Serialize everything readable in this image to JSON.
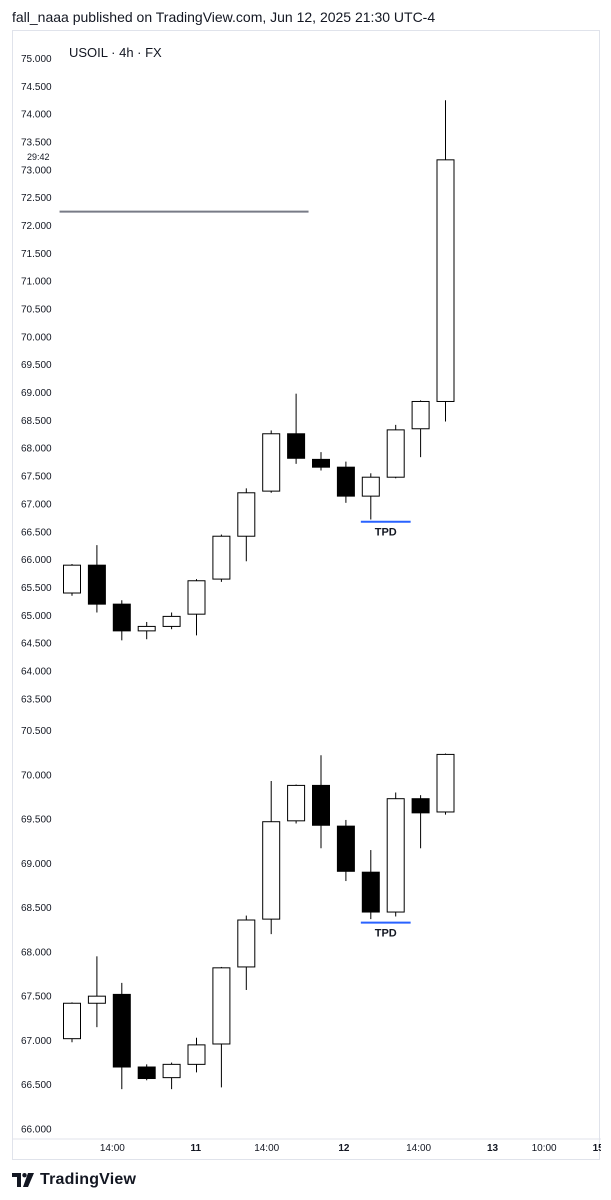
{
  "header": {
    "text": "fall_naaa published on TradingView.com, Jun 12, 2025 21:30 UTC-4"
  },
  "footer": {
    "brand": "TradingView",
    "logo_icon": "tradingview-logo-icon"
  },
  "chart_data": [
    {
      "type": "candlestick",
      "title": "USOIL · 4h · FX",
      "countdown": "29:42",
      "ylim": [
        63.5,
        75.0
      ],
      "y_ticks": [
        75.0,
        74.5,
        74.0,
        73.5,
        73.0,
        72.5,
        72.0,
        71.5,
        71.0,
        70.5,
        70.0,
        69.5,
        69.0,
        68.5,
        68.0,
        67.5,
        67.0,
        66.5,
        66.0,
        65.5,
        65.0,
        64.5,
        64.0,
        63.5
      ],
      "y_tick_labels": [
        "75.000",
        "74.500",
        "74.000",
        "73.500",
        "73.000",
        "72.500",
        "72.000",
        "71.500",
        "71.000",
        "70.500",
        "70.000",
        "69.500",
        "69.000",
        "68.500",
        "68.000",
        "67.500",
        "67.000",
        "66.500",
        "66.000",
        "65.500",
        "65.000",
        "64.500",
        "64.000",
        "63.500"
      ],
      "candles": [
        {
          "o": 65.4,
          "h": 65.92,
          "l": 65.35,
          "c": 65.9
        },
        {
          "o": 65.9,
          "h": 66.26,
          "l": 65.05,
          "c": 65.2
        },
        {
          "o": 65.2,
          "h": 65.27,
          "l": 64.55,
          "c": 64.72
        },
        {
          "o": 64.72,
          "h": 64.88,
          "l": 64.57,
          "c": 64.8
        },
        {
          "o": 64.8,
          "h": 65.05,
          "l": 64.75,
          "c": 64.98
        },
        {
          "o": 65.02,
          "h": 65.65,
          "l": 64.64,
          "c": 65.62
        },
        {
          "o": 65.65,
          "h": 66.45,
          "l": 65.6,
          "c": 66.42
        },
        {
          "o": 66.42,
          "h": 67.28,
          "l": 65.97,
          "c": 67.2
        },
        {
          "o": 67.23,
          "h": 68.32,
          "l": 67.2,
          "c": 68.26
        },
        {
          "o": 68.26,
          "h": 68.98,
          "l": 67.72,
          "c": 67.82
        },
        {
          "o": 67.8,
          "h": 67.93,
          "l": 67.6,
          "c": 67.66
        },
        {
          "o": 67.66,
          "h": 67.76,
          "l": 67.02,
          "c": 67.14
        },
        {
          "o": 67.14,
          "h": 67.55,
          "l": 66.72,
          "c": 67.48
        },
        {
          "o": 67.48,
          "h": 68.42,
          "l": 67.46,
          "c": 68.33
        },
        {
          "o": 68.35,
          "h": 68.86,
          "l": 67.84,
          "c": 68.84
        },
        {
          "o": 68.84,
          "h": 74.25,
          "l": 68.48,
          "c": 73.18
        }
      ],
      "horizontal_lines": [
        {
          "y": 72.25,
          "from_candle": -0.5,
          "to_candle": 9.5,
          "color": "#787b86"
        }
      ],
      "annotations": [
        {
          "label": "TPD",
          "y": 66.68,
          "from_candle": 11.6,
          "to_candle": 13.6,
          "color": "#2962ff"
        }
      ]
    },
    {
      "type": "candlestick",
      "title": "",
      "ylim": [
        66.0,
        70.6
      ],
      "y_ticks": [
        70.5,
        70.0,
        69.5,
        69.0,
        68.5,
        68.0,
        67.5,
        67.0,
        66.5,
        66.0
      ],
      "y_tick_labels": [
        "70.500",
        "70.000",
        "69.500",
        "69.000",
        "68.500",
        "68.000",
        "67.500",
        "67.000",
        "66.500",
        "66.000"
      ],
      "candles": [
        {
          "o": 67.02,
          "h": 67.43,
          "l": 66.98,
          "c": 67.42
        },
        {
          "o": 67.42,
          "h": 67.95,
          "l": 67.15,
          "c": 67.5
        },
        {
          "o": 67.52,
          "h": 67.65,
          "l": 66.45,
          "c": 66.7
        },
        {
          "o": 66.7,
          "h": 66.73,
          "l": 66.55,
          "c": 66.57
        },
        {
          "o": 66.58,
          "h": 66.75,
          "l": 66.45,
          "c": 66.73
        },
        {
          "o": 66.73,
          "h": 67.03,
          "l": 66.64,
          "c": 66.95
        },
        {
          "o": 66.96,
          "h": 67.83,
          "l": 66.47,
          "c": 67.82
        },
        {
          "o": 67.83,
          "h": 68.41,
          "l": 67.57,
          "c": 68.36
        },
        {
          "o": 68.37,
          "h": 69.93,
          "l": 68.2,
          "c": 69.47
        },
        {
          "o": 69.48,
          "h": 69.89,
          "l": 69.45,
          "c": 69.88
        },
        {
          "o": 69.88,
          "h": 70.22,
          "l": 69.17,
          "c": 69.43
        },
        {
          "o": 69.42,
          "h": 69.49,
          "l": 68.8,
          "c": 68.91
        },
        {
          "o": 68.9,
          "h": 69.15,
          "l": 68.37,
          "c": 68.45
        },
        {
          "o": 68.45,
          "h": 69.8,
          "l": 68.4,
          "c": 69.73
        },
        {
          "o": 69.73,
          "h": 69.77,
          "l": 69.17,
          "c": 69.57
        },
        {
          "o": 69.58,
          "h": 70.24,
          "l": 69.55,
          "c": 70.23
        }
      ],
      "annotations": [
        {
          "label": "TPD",
          "y": 68.33,
          "from_candle": 11.6,
          "to_candle": 13.6,
          "color": "#2962ff"
        }
      ]
    }
  ],
  "x_axis": {
    "labels": [
      {
        "text": "14:00",
        "bold": false,
        "pos": 1.62
      },
      {
        "text": "11",
        "bold": true,
        "pos": 4.97
      },
      {
        "text": "14:00",
        "bold": false,
        "pos": 7.82
      },
      {
        "text": "12",
        "bold": true,
        "pos": 10.92
      },
      {
        "text": "14:00",
        "bold": false,
        "pos": 13.92
      },
      {
        "text": "13",
        "bold": true,
        "pos": 16.89
      },
      {
        "text": "10:00",
        "bold": false,
        "pos": 18.96
      },
      {
        "text": "15",
        "bold": true,
        "pos": 21.13
      }
    ]
  }
}
